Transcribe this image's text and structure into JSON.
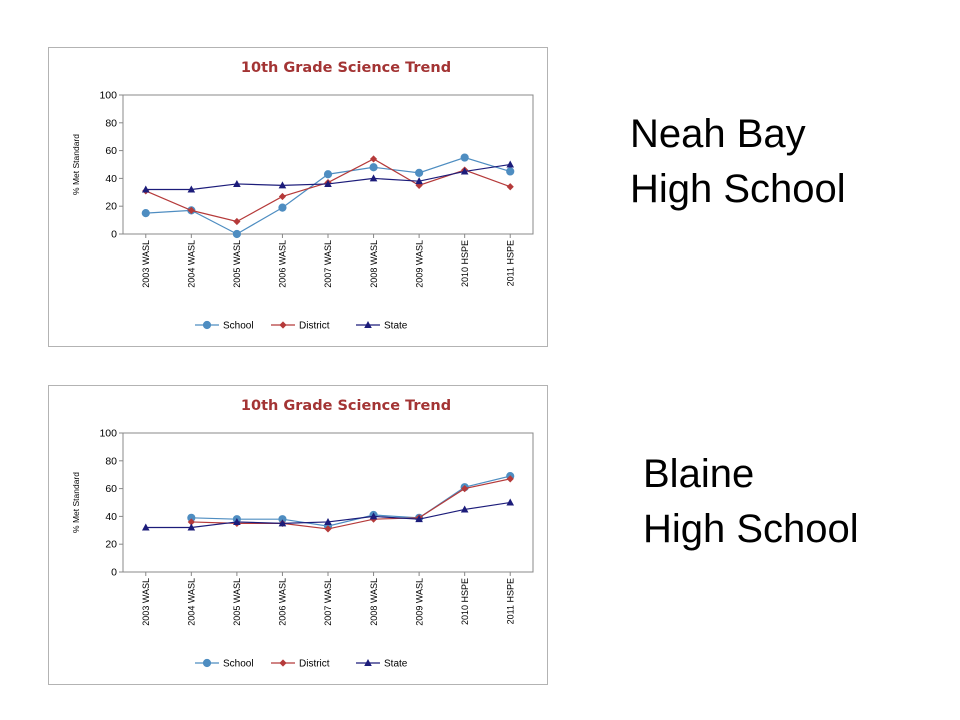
{
  "chart_data": [
    {
      "type": "line",
      "title": "10th Grade Science Trend",
      "xlabel": "",
      "ylabel": "% Met Standard",
      "categories": [
        "2003 WASL",
        "2004 WASL",
        "2005 WASL",
        "2006 WASL",
        "2007 WASL",
        "2008 WASL",
        "2009 WASL",
        "2010 HSPE",
        "2011 HSPE"
      ],
      "ylim": [
        0,
        100
      ],
      "yticks": [
        "0",
        "20",
        "40",
        "60",
        "80",
        "100"
      ],
      "grid": false,
      "legend": "bottom",
      "series": [
        {
          "name": "School",
          "color": "#4e8dc1",
          "marker": "circle",
          "values": [
            15,
            17,
            0,
            19,
            43,
            48,
            44,
            55,
            45
          ]
        },
        {
          "name": "District",
          "color": "#b53a3a",
          "marker": "diamond",
          "values": [
            31,
            17,
            9,
            27,
            37,
            54,
            35,
            46,
            34
          ]
        },
        {
          "name": "State",
          "color": "#1c1c7a",
          "marker": "triangle",
          "values": [
            32,
            32,
            36,
            35,
            36,
            40,
            38,
            45,
            50
          ]
        }
      ]
    },
    {
      "type": "line",
      "title": "10th Grade Science Trend",
      "xlabel": "",
      "ylabel": "% Met Standard",
      "categories": [
        "2003 WASL",
        "2004 WASL",
        "2005 WASL",
        "2006 WASL",
        "2007 WASL",
        "2008 WASL",
        "2009 WASL",
        "2010 HSPE",
        "2011 HSPE"
      ],
      "ylim": [
        0,
        100
      ],
      "yticks": [
        "0",
        "20",
        "40",
        "60",
        "80",
        "100"
      ],
      "grid": false,
      "legend": "bottom",
      "series": [
        {
          "name": "School",
          "color": "#4e8dc1",
          "marker": "circle",
          "values": [
            null,
            39,
            38,
            38,
            33,
            41,
            39,
            61,
            69
          ]
        },
        {
          "name": "District",
          "color": "#b53a3a",
          "marker": "diamond",
          "values": [
            null,
            36,
            35,
            35,
            31,
            38,
            39,
            60,
            67
          ]
        },
        {
          "name": "State",
          "color": "#1c1c7a",
          "marker": "triangle",
          "values": [
            32,
            32,
            36,
            35,
            36,
            40,
            38,
            45,
            50
          ]
        }
      ]
    }
  ],
  "schools": [
    {
      "line1": "Neah Bay",
      "line2": "High School"
    },
    {
      "line1": "Blaine",
      "line2": "High School"
    }
  ]
}
